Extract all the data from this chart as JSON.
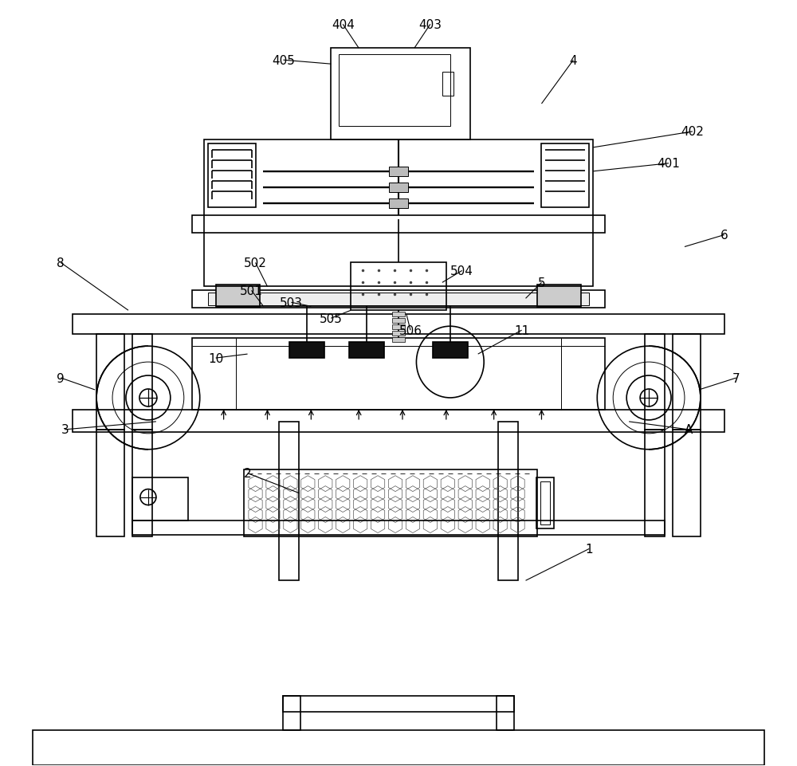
{
  "bg_color": "#ffffff",
  "lc": "#000000",
  "lw": 1.2,
  "tlw": 0.7,
  "fig_w": 10.0,
  "fig_h": 9.62,
  "label_fs": 11
}
